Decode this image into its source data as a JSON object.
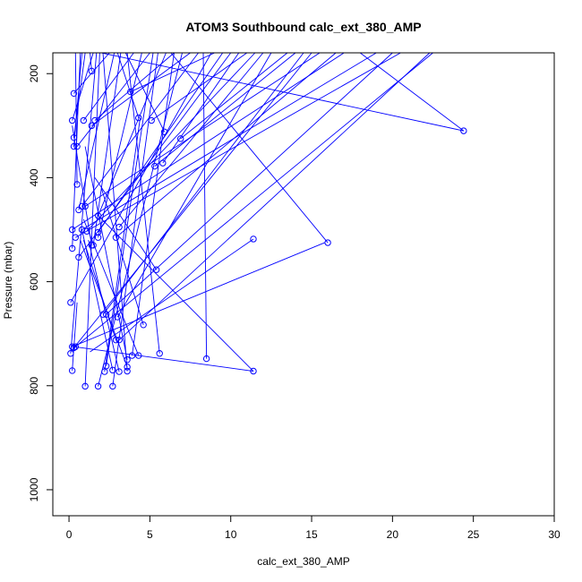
{
  "chart_data": {
    "type": "line",
    "title": "ATOM3 Southbound calc_ext_380_AMP",
    "xlabel": "calc_ext_380_AMP",
    "ylabel": "Pressure (mbar)",
    "xlim": [
      -1,
      30
    ],
    "ylim": [
      1050,
      160
    ],
    "y_axis_inverted": true,
    "xticks": [
      0,
      5,
      10,
      15,
      20,
      25,
      30
    ],
    "yticks": [
      200,
      400,
      600,
      800,
      1000
    ],
    "grid": false,
    "legend": "none",
    "series_color": "#0000ff",
    "marker": "open-circle",
    "series": [
      {
        "points": [
          [
            1.4,
            195
          ],
          [
            0.3,
            238
          ],
          [
            3.8,
            235
          ],
          [
            0.2,
            290
          ],
          [
            0.9,
            290
          ],
          [
            1.6,
            290
          ],
          [
            4.3,
            285
          ],
          [
            5.1,
            290
          ],
          [
            1.4,
            300
          ],
          [
            5.9,
            312
          ],
          [
            24.4,
            310
          ],
          [
            0.3,
            323
          ],
          [
            6.9,
            325
          ],
          [
            0.3,
            340
          ],
          [
            0.5,
            340
          ],
          [
            5.8,
            372
          ],
          [
            5.3,
            378
          ],
          [
            0.5,
            413
          ],
          [
            0.8,
            455
          ],
          [
            1.0,
            455
          ],
          [
            0.6,
            462
          ],
          [
            1.8,
            473
          ],
          [
            3.1,
            495
          ],
          [
            0.2,
            500
          ],
          [
            0.8,
            500
          ],
          [
            1.1,
            503
          ],
          [
            1.8,
            505
          ],
          [
            0.4,
            515
          ],
          [
            1.8,
            515
          ],
          [
            2.9,
            515
          ],
          [
            11.4,
            518
          ],
          [
            16.0,
            525
          ],
          [
            1.4,
            530
          ],
          [
            1.5,
            530
          ],
          [
            0.2,
            536
          ],
          [
            0.6,
            553
          ],
          [
            5.4,
            577
          ],
          [
            0.1,
            640
          ],
          [
            2.1,
            663
          ],
          [
            2.3,
            663
          ],
          [
            3.0,
            668
          ],
          [
            4.6,
            683
          ],
          [
            2.9,
            712
          ],
          [
            3.1,
            712
          ],
          [
            0.2,
            725
          ],
          [
            0.4,
            725
          ],
          [
            0.3,
            727
          ],
          [
            0.1,
            738
          ],
          [
            3.9,
            742
          ],
          [
            4.3,
            742
          ],
          [
            5.6,
            738
          ],
          [
            8.5,
            748
          ],
          [
            3.6,
            750
          ],
          [
            2.3,
            762
          ],
          [
            3.6,
            764
          ],
          [
            0.2,
            771
          ],
          [
            2.2,
            773
          ],
          [
            2.7,
            770
          ],
          [
            3.1,
            773
          ],
          [
            3.6,
            772
          ],
          [
            11.4,
            772
          ],
          [
            1.0,
            801
          ],
          [
            1.8,
            801
          ],
          [
            2.7,
            801
          ]
        ]
      }
    ],
    "segments": [
      [
        [
          1.4,
          195
        ],
        [
          1.3,
          160
        ]
      ],
      [
        [
          0.3,
          238
        ],
        [
          2.5,
          160
        ]
      ],
      [
        [
          3.8,
          235
        ],
        [
          9.0,
          160
        ]
      ],
      [
        [
          0.2,
          290
        ],
        [
          1.5,
          160
        ]
      ],
      [
        [
          0.9,
          290
        ],
        [
          4.0,
          160
        ]
      ],
      [
        [
          1.6,
          290
        ],
        [
          6.5,
          160
        ]
      ],
      [
        [
          4.3,
          285
        ],
        [
          3.0,
          160
        ]
      ],
      [
        [
          5.1,
          290
        ],
        [
          11.0,
          160
        ]
      ],
      [
        [
          1.4,
          300
        ],
        [
          7.5,
          160
        ]
      ],
      [
        [
          5.9,
          312
        ],
        [
          3.5,
          160
        ]
      ],
      [
        [
          24.4,
          310
        ],
        [
          18.0,
          160
        ]
      ],
      [
        [
          24.4,
          310
        ],
        [
          2.0,
          160
        ]
      ],
      [
        [
          0.3,
          323
        ],
        [
          1.0,
          160
        ]
      ],
      [
        [
          6.9,
          325
        ],
        [
          13.5,
          160
        ]
      ],
      [
        [
          0.3,
          340
        ],
        [
          0.8,
          160
        ]
      ],
      [
        [
          0.5,
          340
        ],
        [
          5.0,
          160
        ]
      ],
      [
        [
          5.8,
          372
        ],
        [
          10.5,
          160
        ]
      ],
      [
        [
          5.3,
          378
        ],
        [
          14.0,
          160
        ]
      ],
      [
        [
          0.5,
          413
        ],
        [
          0.4,
          160
        ]
      ],
      [
        [
          0.8,
          455
        ],
        [
          8.0,
          160
        ]
      ],
      [
        [
          1.0,
          455
        ],
        [
          15.5,
          160
        ]
      ],
      [
        [
          0.6,
          462
        ],
        [
          2.8,
          160
        ]
      ],
      [
        [
          1.8,
          473
        ],
        [
          6.0,
          160
        ]
      ],
      [
        [
          3.1,
          495
        ],
        [
          12.0,
          160
        ]
      ],
      [
        [
          0.2,
          500
        ],
        [
          17.0,
          160
        ]
      ],
      [
        [
          0.8,
          500
        ],
        [
          19.0,
          160
        ]
      ],
      [
        [
          1.1,
          503
        ],
        [
          11.5,
          160
        ]
      ],
      [
        [
          1.8,
          505
        ],
        [
          9.5,
          160
        ]
      ],
      [
        [
          0.4,
          515
        ],
        [
          20.5,
          160
        ]
      ],
      [
        [
          1.8,
          515
        ],
        [
          4.5,
          160
        ]
      ],
      [
        [
          2.9,
          515
        ],
        [
          16.5,
          160
        ]
      ],
      [
        [
          11.4,
          518
        ],
        [
          1.3,
          735
        ]
      ],
      [
        [
          16.0,
          525
        ],
        [
          6.3,
          160
        ]
      ],
      [
        [
          1.4,
          530
        ],
        [
          0.2,
          300
        ]
      ],
      [
        [
          1.5,
          530
        ],
        [
          3.2,
          160
        ]
      ],
      [
        [
          0.2,
          536
        ],
        [
          0.7,
          160
        ]
      ],
      [
        [
          0.6,
          553
        ],
        [
          10.0,
          160
        ]
      ],
      [
        [
          5.4,
          577
        ],
        [
          1.6,
          400
        ]
      ],
      [
        [
          0.1,
          640
        ],
        [
          8.8,
          160
        ]
      ],
      [
        [
          2.1,
          663
        ],
        [
          14.5,
          160
        ]
      ],
      [
        [
          2.3,
          663
        ],
        [
          20.0,
          160
        ]
      ],
      [
        [
          3.0,
          668
        ],
        [
          12.5,
          160
        ]
      ],
      [
        [
          4.6,
          683
        ],
        [
          2.0,
          420
        ]
      ],
      [
        [
          2.9,
          712
        ],
        [
          0.9,
          520
        ]
      ],
      [
        [
          3.1,
          712
        ],
        [
          22.3,
          160
        ]
      ],
      [
        [
          0.2,
          725
        ],
        [
          15.8,
          525
        ]
      ],
      [
        [
          0.4,
          725
        ],
        [
          22.5,
          160
        ]
      ],
      [
        [
          0.3,
          727
        ],
        [
          15.0,
          160
        ]
      ],
      [
        [
          0.1,
          738
        ],
        [
          1.7,
          160
        ]
      ],
      [
        [
          3.9,
          742
        ],
        [
          6.5,
          160
        ]
      ],
      [
        [
          4.3,
          742
        ],
        [
          0.9,
          480
        ]
      ],
      [
        [
          5.6,
          738
        ],
        [
          3.6,
          160
        ]
      ],
      [
        [
          8.5,
          748
        ],
        [
          8.3,
          160
        ]
      ],
      [
        [
          3.6,
          750
        ],
        [
          1.0,
          340
        ]
      ],
      [
        [
          2.3,
          762
        ],
        [
          5.2,
          160
        ]
      ],
      [
        [
          3.6,
          764
        ],
        [
          0.7,
          520
        ]
      ],
      [
        [
          0.2,
          771
        ],
        [
          0.5,
          640
        ]
      ],
      [
        [
          2.2,
          773
        ],
        [
          4.4,
          285
        ]
      ],
      [
        [
          2.7,
          770
        ],
        [
          0.8,
          500
        ]
      ],
      [
        [
          3.1,
          773
        ],
        [
          1.2,
          520
        ]
      ],
      [
        [
          3.6,
          772
        ],
        [
          2.1,
          160
        ]
      ],
      [
        [
          11.4,
          772
        ],
        [
          0.3,
          725
        ]
      ],
      [
        [
          11.4,
          772
        ],
        [
          1.8,
          473
        ]
      ],
      [
        [
          1.0,
          801
        ],
        [
          1.9,
          160
        ]
      ],
      [
        [
          1.8,
          801
        ],
        [
          7.0,
          160
        ]
      ],
      [
        [
          2.7,
          801
        ],
        [
          5.5,
          160
        ]
      ]
    ]
  }
}
